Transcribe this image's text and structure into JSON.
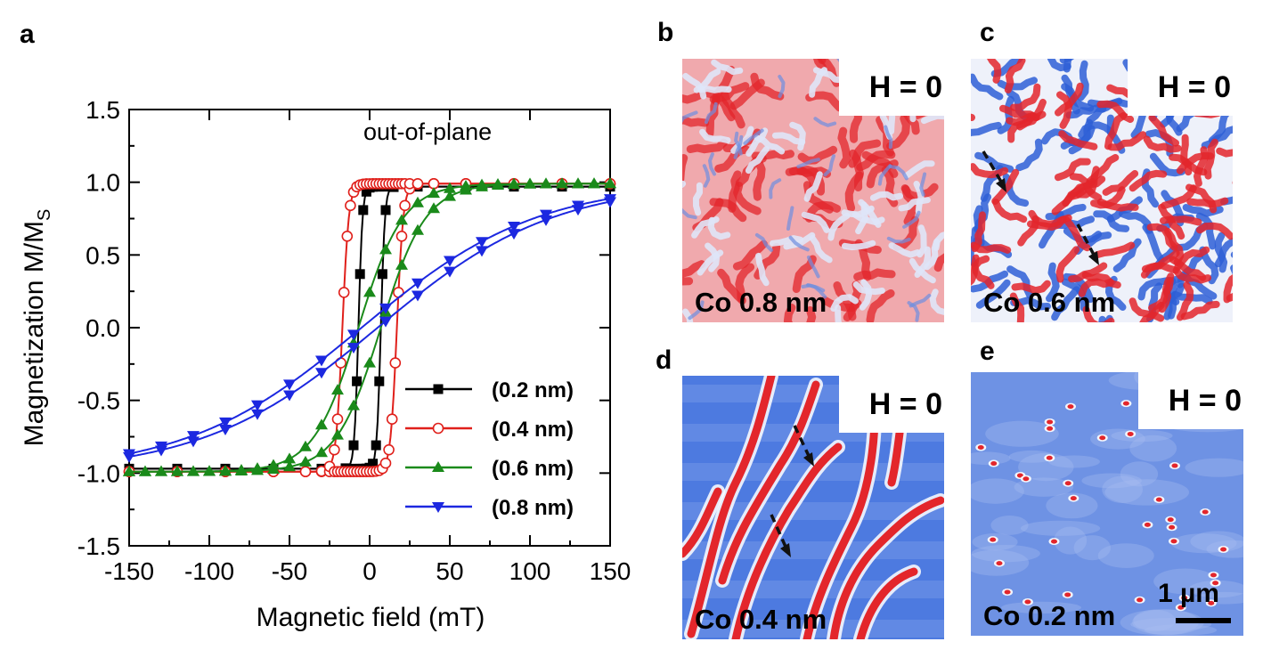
{
  "panels": {
    "a": "a",
    "b": "b",
    "c": "c",
    "d": "d",
    "e": "e"
  },
  "chart_data": {
    "type": "line",
    "title": "",
    "annotation": "out-of-plane",
    "xlabel": "Magnetic field (mT)",
    "ylabel_main": "Magnetization M/M",
    "ylabel_sub": "S",
    "xlim": [
      -150,
      150
    ],
    "ylim": [
      -1.5,
      1.5
    ],
    "xticks": [
      -150,
      -100,
      -50,
      0,
      50,
      100,
      150
    ],
    "xtick_labels": [
      "-150",
      "-100",
      "-50",
      "0",
      "50",
      "100",
      "150"
    ],
    "yticks": [
      -1.5,
      -1.0,
      -0.5,
      0.0,
      0.5,
      1.0,
      1.5
    ],
    "ytick_labels": [
      "-1.5",
      "-1.0",
      "-0.5",
      "0.0",
      "0.5",
      "1.0",
      "1.5"
    ],
    "grid": false,
    "legend_position": "bottom-right",
    "series": [
      {
        "name": "(0.2 nm)",
        "color": "#000000",
        "marker": "square-filled",
        "Hc": 7,
        "width": 2.5,
        "sat": 0.97,
        "branch_x": [
          -150,
          -120,
          -90,
          -60,
          -30,
          -15,
          -10,
          -8,
          -6,
          -4,
          -2,
          0,
          2,
          4,
          6,
          8,
          10,
          15,
          30,
          60,
          90,
          120,
          150
        ]
      },
      {
        "name": "(0.4 nm)",
        "color": "#e0201b",
        "marker": "circle-open",
        "Hc": 17,
        "width": 4,
        "sat": 0.99,
        "branch_x": [
          -150,
          -120,
          -90,
          -60,
          -40,
          -30,
          -25,
          -22,
          -20,
          -18,
          -16,
          -14,
          -12,
          -10,
          -8,
          -6,
          -4,
          -2,
          0,
          2,
          4,
          6,
          8,
          10,
          12,
          14,
          16,
          18,
          20,
          22,
          25,
          30,
          40,
          60,
          90,
          120,
          150
        ]
      },
      {
        "name": "(0.6 nm)",
        "color": "#1a8a1a",
        "marker": "triangle-up-filled",
        "Hc": 7,
        "width": 28,
        "sat": 0.99,
        "branch_x": [
          -150,
          -140,
          -130,
          -120,
          -110,
          -100,
          -90,
          -80,
          -70,
          -60,
          -50,
          -40,
          -30,
          -20,
          -10,
          0,
          10,
          20,
          30,
          40,
          50,
          60,
          70,
          80,
          90,
          100,
          110,
          120,
          130,
          140,
          150
        ]
      },
      {
        "name": "(0.8 nm)",
        "color": "#1c28e0",
        "marker": "triangle-down-filled",
        "Hc": 5,
        "width": 110,
        "sat": 1.0,
        "branch_x": [
          -150,
          -130,
          -110,
          -90,
          -70,
          -50,
          -30,
          -10,
          10,
          30,
          50,
          70,
          90,
          110,
          130,
          150
        ]
      }
    ]
  },
  "maps": [
    {
      "panel": "b",
      "field": "H = 0",
      "label": "Co 0.8 nm",
      "style": "dense-red"
    },
    {
      "panel": "c",
      "field": "H = 0",
      "label": "Co 0.6 nm",
      "style": "labyrinth"
    },
    {
      "panel": "d",
      "field": "H = 0",
      "label": "Co 0.4 nm",
      "style": "stripes"
    },
    {
      "panel": "e",
      "field": "H = 0",
      "label": "Co 0.2 nm",
      "style": "skyrmions",
      "scale_label": "1 µm"
    }
  ],
  "colors": {
    "domain_up": "#e3262b",
    "domain_down": "#2e5fd6",
    "arrow": "#111111"
  }
}
